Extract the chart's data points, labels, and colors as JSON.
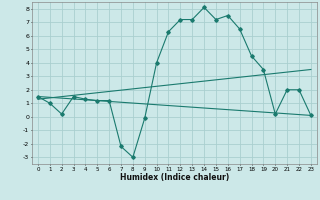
{
  "xlabel": "Humidex (Indice chaleur)",
  "ylabel": "",
  "bg_color": "#cce8e8",
  "grid_color": "#aacfcf",
  "line_color": "#1a7a6e",
  "xlim": [
    -0.5,
    23.5
  ],
  "ylim": [
    -3.5,
    8.5
  ],
  "xticks": [
    0,
    1,
    2,
    3,
    4,
    5,
    6,
    7,
    8,
    9,
    10,
    11,
    12,
    13,
    14,
    15,
    16,
    17,
    18,
    19,
    20,
    21,
    22,
    23
  ],
  "yticks": [
    -3,
    -2,
    -1,
    0,
    1,
    2,
    3,
    4,
    5,
    6,
    7,
    8
  ],
  "main_line_x": [
    0,
    1,
    2,
    3,
    4,
    5,
    6,
    7,
    8,
    9,
    10,
    11,
    12,
    13,
    14,
    15,
    16,
    17,
    18,
    19,
    20,
    21,
    22,
    23
  ],
  "main_line_y": [
    1.5,
    1.0,
    0.2,
    1.5,
    1.3,
    1.2,
    1.2,
    -2.2,
    -3.0,
    -0.1,
    4.0,
    6.3,
    7.2,
    7.2,
    8.1,
    7.2,
    7.5,
    6.5,
    4.5,
    3.5,
    0.2,
    2.0,
    2.0,
    0.1
  ],
  "trend_line1_x": [
    0,
    23
  ],
  "trend_line1_y": [
    1.5,
    0.1
  ],
  "trend_line2_x": [
    0,
    23
  ],
  "trend_line2_y": [
    1.3,
    3.5
  ]
}
